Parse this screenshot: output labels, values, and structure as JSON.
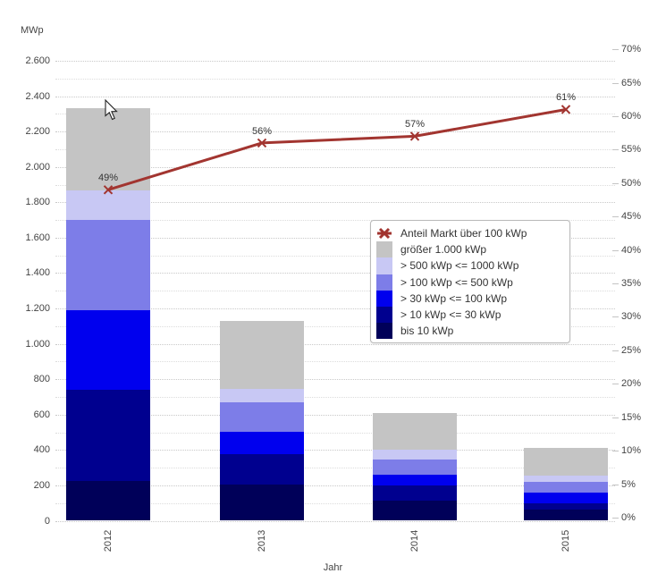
{
  "chart_data": {
    "type": "combo-stacked-bar-line",
    "x_axis": {
      "label": "Jahr",
      "categories": [
        "2012",
        "2013",
        "2014",
        "2015"
      ]
    },
    "left_axis": {
      "label": "MWp",
      "min": 0,
      "max": 2600,
      "major_step": 200,
      "minor_step": 100,
      "tick_labels": [
        "0",
        "200",
        "400",
        "600",
        "800",
        "1.000",
        "1.200",
        "1.400",
        "1.600",
        "1.800",
        "2.000",
        "2.200",
        "2.400",
        "2.600"
      ]
    },
    "right_axis": {
      "min": 0,
      "max": 70,
      "step": 5,
      "tick_labels": [
        "0%",
        "5%",
        "10%",
        "15%",
        "20%",
        "25%",
        "30%",
        "35%",
        "40%",
        "45%",
        "50%",
        "55%",
        "60%",
        "65%",
        "70%"
      ]
    },
    "bar_series": [
      {
        "name": "bis 10 kWp",
        "color": "#000059",
        "values": [
          225,
          205,
          115,
          65
        ]
      },
      {
        "name": "> 10 kWp <= 30 kWp",
        "color": "#00008f",
        "values": [
          515,
          170,
          85,
          35
        ]
      },
      {
        "name": "> 30 kWp <= 100 kWp",
        "color": "#0000ee",
        "values": [
          450,
          130,
          60,
          60
        ]
      },
      {
        "name": "> 100 kWp <= 500 kWp",
        "color": "#7d7de8",
        "values": [
          510,
          165,
          85,
          60
        ]
      },
      {
        "name": "> 500 kWp <= 1000 kWp",
        "color": "#c8c8f4",
        "values": [
          165,
          75,
          55,
          35
        ]
      },
      {
        "name": "größer 1.000 kWp",
        "color": "#c4c4c4",
        "values": [
          465,
          385,
          210,
          155
        ]
      }
    ],
    "line_series": {
      "name": "Anteil Markt über 100 kWp",
      "color": "#a23530",
      "values": [
        49,
        56,
        57,
        61
      ],
      "point_labels": [
        "49%",
        "56%",
        "57%",
        "61%"
      ]
    },
    "legend": {
      "items": [
        {
          "label": "Anteil Markt über 100 kWp",
          "type": "line-x-marker",
          "color": "#a23530"
        },
        {
          "label": "größer 1.000 kWp",
          "type": "swatch",
          "color": "#c4c4c4"
        },
        {
          "label": "> 500 kWp <= 1000 kWp",
          "type": "swatch",
          "color": "#c8c8f4"
        },
        {
          "label": "> 100 kWp <= 500 kWp",
          "type": "swatch",
          "color": "#7d7de8"
        },
        {
          "label": "> 30 kWp <= 100 kWp",
          "type": "swatch",
          "color": "#0000ee"
        },
        {
          "label": "> 10 kWp <= 30 kWp",
          "type": "swatch",
          "color": "#00008f"
        },
        {
          "label": "bis 10 kWp",
          "type": "swatch",
          "color": "#000059"
        }
      ]
    }
  }
}
